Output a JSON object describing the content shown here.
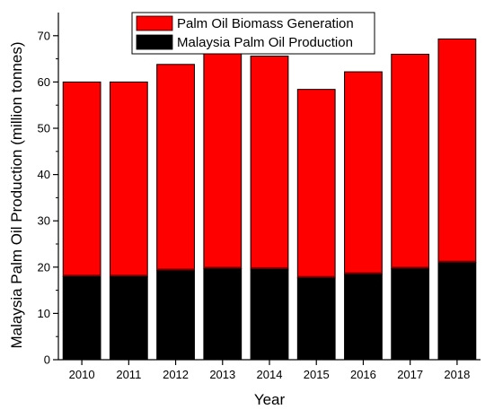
{
  "chart_data": {
    "type": "bar",
    "stacked": true,
    "title": "",
    "xlabel": "Year",
    "ylabel": "Malaysia Palm Oil Production (million tonnes)",
    "categories": [
      "2010",
      "2011",
      "2012",
      "2013",
      "2014",
      "2015",
      "2016",
      "2017",
      "2018"
    ],
    "series": [
      {
        "name": "Malaysia Palm Oil Production",
        "values": [
          18.0,
          18.0,
          19.3,
          19.7,
          19.6,
          17.7,
          18.5,
          19.7,
          21.0
        ],
        "color": "#000000"
      },
      {
        "name": "Palm Oil Biomass Generation",
        "values": [
          42.0,
          42.0,
          44.5,
          46.8,
          46.0,
          40.7,
          43.7,
          46.3,
          48.3
        ],
        "color": "#ff0000"
      }
    ],
    "totals": [
      60.0,
      60.0,
      63.8,
      66.5,
      65.6,
      58.4,
      62.2,
      66.0,
      69.3
    ],
    "ylim": [
      0,
      75
    ],
    "yticks": [
      0,
      10,
      20,
      30,
      40,
      50,
      60,
      70
    ],
    "grid": false,
    "legend_position": "top-center",
    "legend": [
      {
        "name": "Palm Oil Biomass Generation",
        "color": "#ff0000"
      },
      {
        "name": "Malaysia Palm Oil Production",
        "color": "#000000"
      }
    ]
  }
}
